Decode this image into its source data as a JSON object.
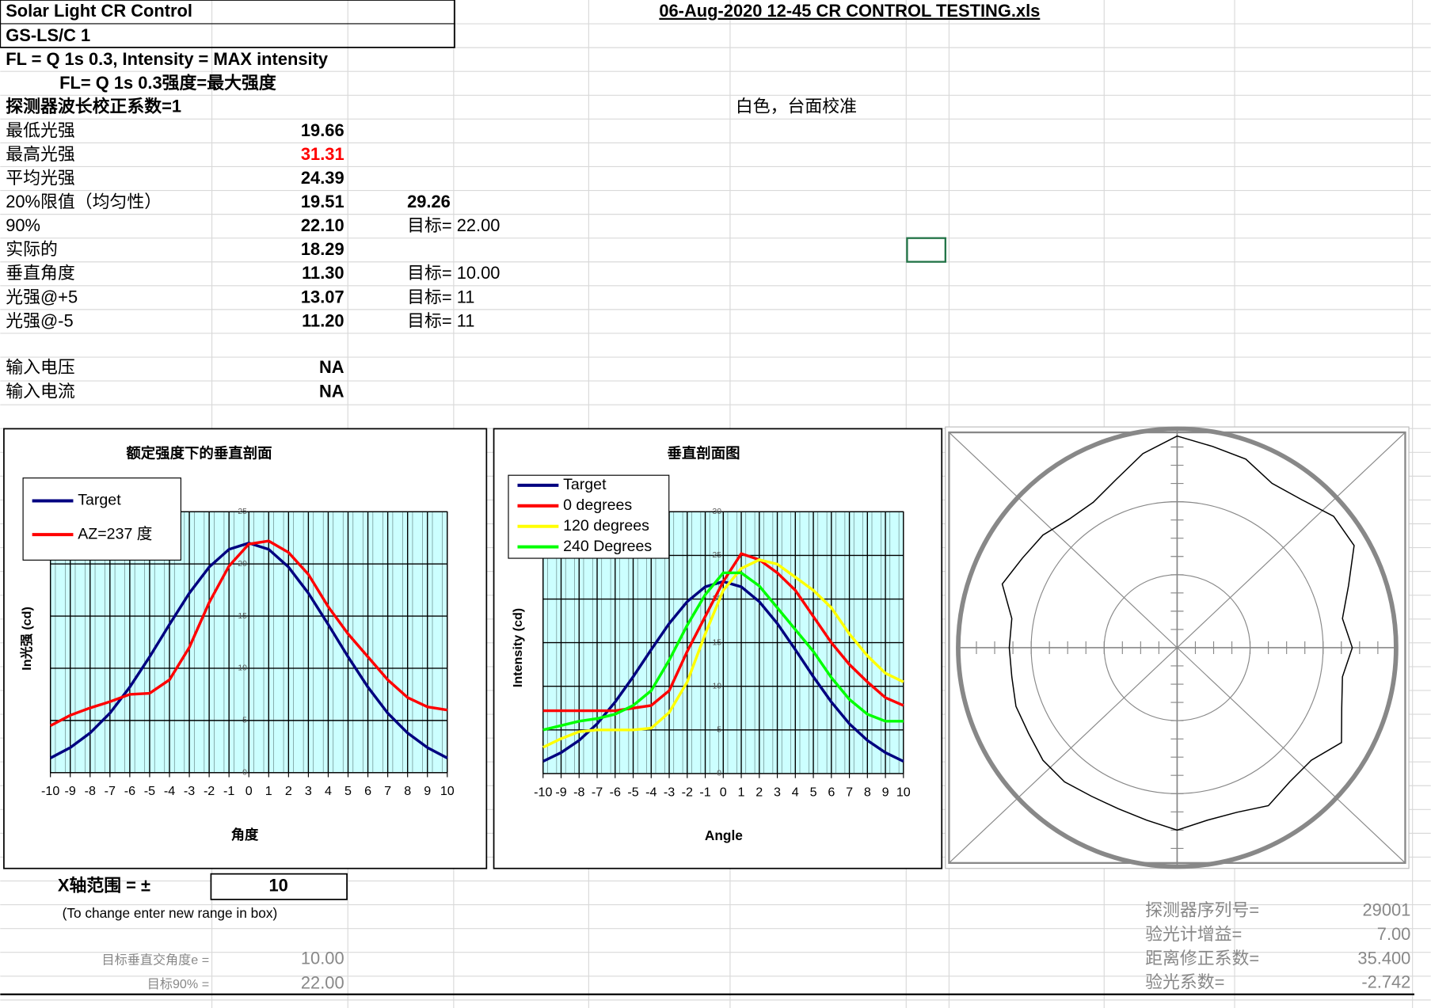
{
  "sheet": {
    "title1": "Solar Light CR Control",
    "title2": "GS-LS/C 1",
    "file": "06-Aug-2020  12-45  CR CONTROL TESTING.xls",
    "line1": "FL = Q 1s 0.3, Intensity = MAX intensity",
    "line2": "FL= Q 1s 0.3强度=最大强度",
    "note": "白色，台面校准",
    "rows": [
      [
        "探测器波长校正系数=1"
      ],
      [
        "最低光强",
        "19.66"
      ],
      [
        "最高光强",
        "31.31"
      ],
      [
        "平均光强",
        "24.39"
      ],
      [
        "20%限值（均匀性）",
        "19.51",
        "29.26"
      ],
      [
        "90%",
        "22.10",
        "目标= 22.00"
      ],
      [
        "实际的",
        "18.29"
      ],
      [
        "垂直角度",
        "11.30",
        "目标= 10.00"
      ],
      [
        "光强@+5",
        "13.07",
        "目标= 11"
      ],
      [
        "光强@-5",
        "11.20",
        "目标= 11"
      ]
    ],
    "inputs": [
      [
        "输入电压",
        "NA"
      ],
      [
        "输入电流",
        "NA"
      ]
    ],
    "range_label": "X轴范围 = ±",
    "range_value": "10",
    "range_hint": "(To change enter new range in box)",
    "targets": [
      [
        "目标垂直交角度e =",
        "10.00"
      ],
      [
        "目标90% =",
        "22.00"
      ]
    ],
    "meter": [
      [
        "探测器序列号=",
        "29001"
      ],
      [
        "验光计增益=",
        "7.00"
      ],
      [
        "距离修正系数=",
        "35.400"
      ],
      [
        "验光系数=",
        "-2.742"
      ]
    ]
  },
  "chart_data": [
    {
      "type": "line",
      "title": "额定强度下的垂直剖面",
      "xlabel": "角度",
      "ylabel": "In光强 (cd)",
      "x": [
        -10,
        -9,
        -8,
        -7,
        -6,
        -5,
        -4,
        -3,
        -2,
        -1,
        0,
        1,
        2,
        3,
        4,
        5,
        6,
        7,
        8,
        9,
        10
      ],
      "xlim": [
        -10,
        10
      ],
      "xticks": [
        -10,
        -9,
        -8,
        -7,
        -6,
        -5,
        -4,
        -3,
        -2,
        -1,
        0,
        1,
        2,
        3,
        4,
        5,
        6,
        7,
        8,
        9,
        10
      ],
      "ylim": [
        0,
        25
      ],
      "yticks": [
        0,
        5,
        10,
        15,
        20,
        25
      ],
      "grid": true,
      "legend": "top-left",
      "series": [
        {
          "name": "Target",
          "color": "#000080",
          "values": [
            1.4,
            2.4,
            3.8,
            5.7,
            8.2,
            11.1,
            14.2,
            17.2,
            19.7,
            21.4,
            22,
            21.4,
            19.7,
            17.2,
            14.2,
            11.1,
            8.2,
            5.7,
            3.8,
            2.4,
            1.4
          ]
        },
        {
          "name": "AZ=237 度",
          "color": "#ff0000",
          "values": [
            4.5,
            5.5,
            6.2,
            6.8,
            7.5,
            7.6,
            8.9,
            12,
            16.3,
            19.8,
            21.9,
            22.2,
            21.1,
            19,
            15.9,
            13.3,
            11.1,
            8.9,
            7.2,
            6.3,
            6
          ]
        }
      ]
    },
    {
      "type": "line",
      "title": "垂直剖面图",
      "xlabel": "Angle",
      "ylabel": "Intensity (cd)",
      "x": [
        -10,
        -9,
        -8,
        -7,
        -6,
        -5,
        -4,
        -3,
        -2,
        -1,
        0,
        1,
        2,
        3,
        4,
        5,
        6,
        7,
        8,
        9,
        10
      ],
      "xlim": [
        -10,
        10
      ],
      "xticks": [
        -10,
        -9,
        -8,
        -7,
        -6,
        -5,
        -4,
        -3,
        -2,
        -1,
        0,
        1,
        2,
        3,
        4,
        5,
        6,
        7,
        8,
        9,
        10
      ],
      "ylim": [
        0,
        30
      ],
      "yticks": [
        0,
        5,
        10,
        15,
        20,
        25,
        30
      ],
      "grid": true,
      "legend": "top-left",
      "series": [
        {
          "name": "Target",
          "color": "#000080",
          "values": [
            1.4,
            2.4,
            3.8,
            5.7,
            8.2,
            11.1,
            14.2,
            17.2,
            19.7,
            21.4,
            22,
            21.4,
            19.7,
            17.2,
            14.2,
            11.1,
            8.2,
            5.7,
            3.8,
            2.4,
            1.4
          ]
        },
        {
          "name": "0 degrees",
          "color": "#ff0000",
          "values": [
            7.2,
            7.2,
            7.2,
            7.2,
            7.2,
            7.5,
            7.8,
            9.5,
            14,
            18,
            22,
            25.2,
            24.5,
            23,
            21,
            18,
            15,
            12.5,
            10.5,
            8.7,
            7.8
          ]
        },
        {
          "name": "120 degrees",
          "color": "#ffff00",
          "values": [
            3,
            4,
            4.8,
            5,
            5,
            5,
            5.2,
            7,
            10.5,
            16,
            21,
            23.5,
            24.5,
            24,
            22.5,
            21,
            19,
            16,
            13.5,
            11.5,
            10.5
          ]
        },
        {
          "name": "240 Degrees",
          "color": "#00ff00",
          "values": [
            5,
            5.5,
            6,
            6.3,
            6.8,
            7.8,
            9.5,
            13,
            17,
            20.5,
            23,
            23,
            21.5,
            19,
            16.5,
            14,
            11,
            8.5,
            6.8,
            6,
            6
          ]
        }
      ]
    },
    {
      "type": "polar",
      "color": "#000000",
      "x": [
        0,
        10,
        20,
        30,
        40,
        50,
        60,
        70,
        80,
        90,
        100,
        110,
        120,
        130,
        140,
        150,
        160,
        170,
        180,
        190,
        200,
        210,
        220,
        230,
        240,
        250,
        260,
        270,
        280,
        290,
        300,
        310,
        320,
        330,
        340,
        350
      ],
      "values": [
        29,
        28,
        27.5,
        26,
        26.5,
        28,
        28,
        25,
        23,
        24,
        23,
        24,
        26,
        24,
        24,
        25,
        24,
        24,
        25,
        24,
        23.5,
        23.5,
        24,
        24,
        23.5,
        23.5,
        23,
        23,
        23,
        25.5,
        24.5,
        24,
        23,
        23,
        24.5,
        27
      ],
      "rlim": [
        0,
        30
      ],
      "rticks": [
        10,
        20,
        30
      ]
    }
  ]
}
